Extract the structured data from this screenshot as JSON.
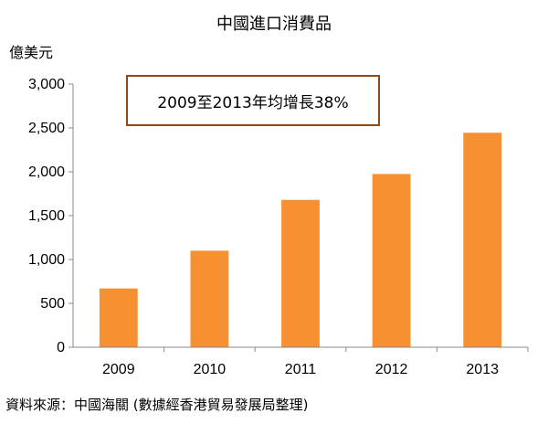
{
  "chart_data": {
    "type": "bar",
    "title": "中國進口消費品",
    "ylabel": "億美元",
    "xlabel": "",
    "categories": [
      "2009",
      "2010",
      "2011",
      "2012",
      "2013"
    ],
    "values": [
      670,
      1100,
      1680,
      1975,
      2445
    ],
    "ylim": [
      0,
      3000
    ],
    "yticks": [
      0,
      500,
      1000,
      1500,
      2000,
      2500,
      3000
    ],
    "ytick_labels": [
      "0",
      "500",
      "1,000",
      "1,500",
      "2,000",
      "2,500",
      "3,000"
    ],
    "annotation": "2009至2013年均增長38%",
    "grid": false,
    "legend": "none",
    "bar_color": "#f78f33"
  },
  "source_note": "資料來源：中國海關 (數據經香港貿易發展局整理)",
  "colors": {
    "bar": "#f78f33",
    "axis": "#888888",
    "callout_border": "#8a4a1e"
  }
}
